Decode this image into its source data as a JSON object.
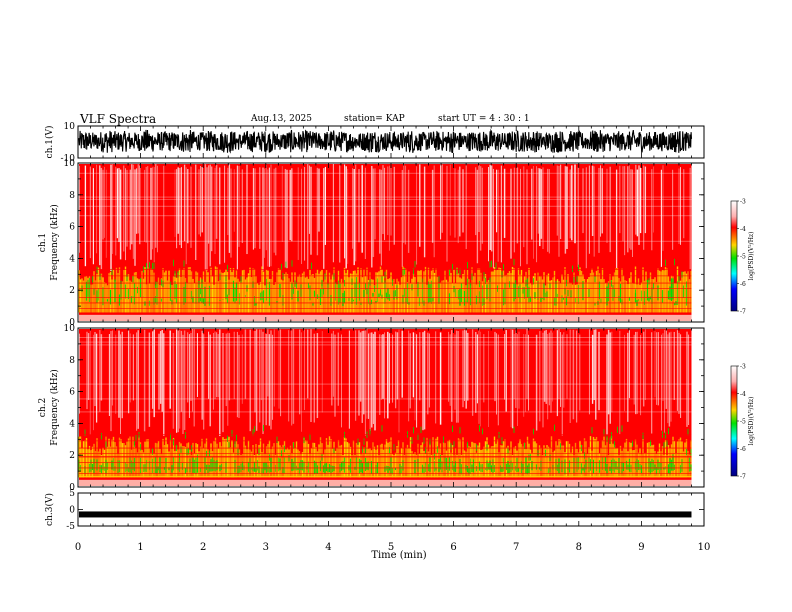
{
  "header": {
    "title": "VLF Spectra",
    "date": "Aug.13, 2025",
    "station": "station= KAP",
    "start_ut": "start  UT =   4 : 30 : 1"
  },
  "colors": {
    "red": "#ff0000",
    "yellow": "#ffd400",
    "green": "#00e000",
    "cyan": "#00ffff",
    "blue": "#0000ff",
    "navy": "#000080",
    "background": "#ffffff"
  },
  "chart_data": [
    {
      "id": "ch1-waveform",
      "type": "line",
      "ylabel": "ch.1(V)",
      "ylim": [
        -10,
        10
      ],
      "yticks": [
        10,
        -10
      ],
      "xlim": [
        0,
        10
      ],
      "data_extent_min": 9.8,
      "description_band": "dense noise between about -7 and 8 V"
    },
    {
      "id": "ch1-spectrogram",
      "type": "heatmap",
      "ylabel": "ch.1",
      "ylabel2": "Frequency  (kHz)",
      "ylim": [
        0,
        10
      ],
      "yticks": [
        0,
        2,
        4,
        6,
        8,
        10
      ],
      "xlim": [
        0,
        10
      ],
      "data_extent_min": 9.8,
      "colorbar": {
        "label": "log(PSD)(V²/Hz)",
        "range": [
          -7,
          -3
        ],
        "ticks": [
          -3,
          -4,
          -5,
          -6,
          -7
        ]
      }
    },
    {
      "id": "ch2-spectrogram",
      "type": "heatmap",
      "ylabel": "ch.2",
      "ylabel2": "Frequency  (kHz)",
      "ylim": [
        0,
        10
      ],
      "yticks": [
        0,
        2,
        4,
        6,
        8,
        10
      ],
      "xlim": [
        0,
        10
      ],
      "data_extent_min": 9.8,
      "colorbar": {
        "label": "log(PSD)(V²/Hz)",
        "range": [
          -7,
          -3
        ],
        "ticks": [
          -3,
          -4,
          -5,
          -6,
          -7
        ]
      }
    },
    {
      "id": "ch3-waveform",
      "type": "line",
      "ylabel": "ch.3(V)",
      "ylim": [
        -5,
        5
      ],
      "yticks": [
        5,
        0,
        -5
      ],
      "xlim": [
        0,
        10
      ],
      "data_extent_min": 9.8,
      "level_v": -1.5
    }
  ],
  "xaxis": {
    "label": "Time  (min)",
    "ticks": [
      0,
      1,
      2,
      3,
      4,
      5,
      6,
      7,
      8,
      9,
      10
    ]
  }
}
